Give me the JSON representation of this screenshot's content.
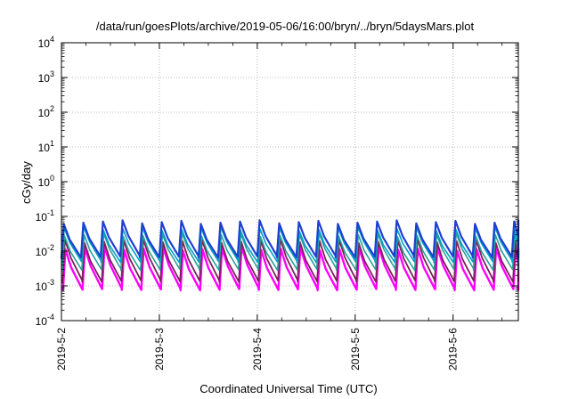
{
  "chart_data": {
    "type": "line",
    "title": "/data/run/goesPlots/archive/2019-05-06/16:00/bryn/../bryn/5daysMars.plot",
    "xlabel": "Coordinated Universal Time (UTC)",
    "ylabel": "cGy/day",
    "yscale": "log",
    "ylim": [
      0.0001,
      10000
    ],
    "xlim": [
      "2019-05-02T00:00",
      "2019-05-06T16:00"
    ],
    "grid": true,
    "legend": "none",
    "x_ticks": [
      "2019-5-2",
      "2019-5-3",
      "2019-5-4",
      "2019-5-5",
      "2019-5-6"
    ],
    "y_ticks": [
      {
        "base": "10",
        "exp": "-4"
      },
      {
        "base": "10",
        "exp": "-3"
      },
      {
        "base": "10",
        "exp": "-2"
      },
      {
        "base": "10",
        "exp": "-1"
      },
      {
        "base": "10",
        "exp": "0"
      },
      {
        "base": "10",
        "exp": "1"
      },
      {
        "base": "10",
        "exp": "2"
      },
      {
        "base": "10",
        "exp": "3"
      },
      {
        "base": "10",
        "exp": "4"
      }
    ],
    "series_description": "Sawtooth curves, period about 0.2 day; each series rises sharply to its peak then decays",
    "series": [
      {
        "color": "#1f3fd0",
        "peak": 0.07,
        "trough": 0.007,
        "width": 2.2
      },
      {
        "color": "#00a0c8",
        "peak": 0.045,
        "trough": 0.005,
        "width": 1.6
      },
      {
        "color": "#2aa198",
        "peak": 0.03,
        "trough": 0.003,
        "width": 1.6
      },
      {
        "color": "#7b1f5a",
        "peak": 0.02,
        "trough": 0.0014,
        "width": 1.8
      },
      {
        "color": "#ff00ff",
        "peak": 0.012,
        "trough": 0.0008,
        "width": 2.4
      }
    ]
  }
}
